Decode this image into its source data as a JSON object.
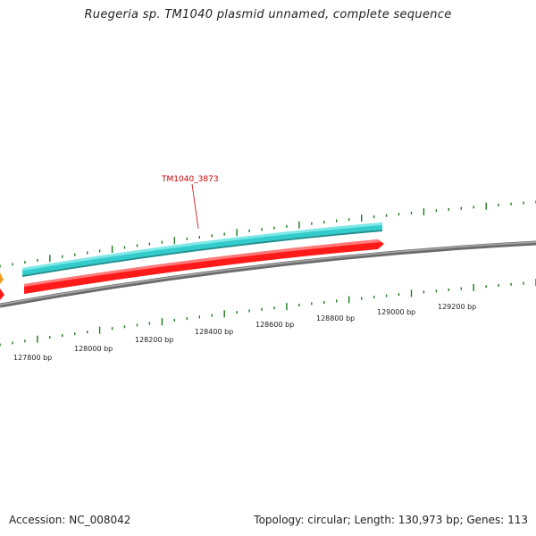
{
  "title": "Ruegeria sp. TM1040 plasmid unnamed, complete sequence",
  "footer": {
    "accession": "Accession: NC_008042",
    "summary": "Topology: circular; Length: 130,973 bp; Genes: 113"
  },
  "gene_label": "TM1040_3873",
  "tick_labels": [
    "127800 bp",
    "128000 bp",
    "128200 bp",
    "128400 bp",
    "128600 bp",
    "128800 bp",
    "129000 bp",
    "129200 bp"
  ],
  "colors": {
    "backbone": "#888888",
    "tick": "#1a7a1a",
    "forward_gene": "#33cccc",
    "reverse_gene": "#ff1a1a",
    "label": "#cc0000"
  }
}
